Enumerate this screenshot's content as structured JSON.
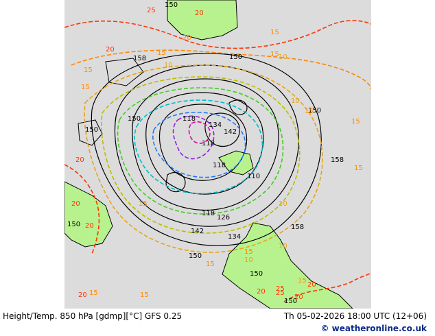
{
  "map": {
    "colors": {
      "sea": "#dcdcdc",
      "land": "#b8f28e",
      "height_contour": "#000000",
      "t20": "#ff3300",
      "t15": "#ff8800",
      "t10": "#e8a317",
      "t5": "#bbbb00",
      "t0": "#44cc22",
      "tm5": "#00bbcc",
      "tm10": "#1e78ff",
      "tm15": "#8822dd",
      "tm25": "#dd00aa"
    },
    "labels": [
      {
        "text": "25",
        "color": "#ff3300"
      },
      {
        "text": "20",
        "color": "#ff3300"
      },
      {
        "text": "150",
        "color": "#000000"
      },
      {
        "text": "20",
        "color": "#ff8800"
      },
      {
        "text": "15",
        "color": "#ff8800"
      },
      {
        "text": "15",
        "color": "#ff8800"
      },
      {
        "text": "20",
        "color": "#ff3300"
      },
      {
        "text": "158",
        "color": "#000000"
      },
      {
        "text": "15",
        "color": "#ff8800"
      },
      {
        "text": "150",
        "color": "#000000"
      },
      {
        "text": "15",
        "color": "#ff8800"
      },
      {
        "text": "10",
        "color": "#e8a317"
      },
      {
        "text": "10",
        "color": "#e8a317"
      },
      {
        "text": "15",
        "color": "#ff8800"
      },
      {
        "text": "15",
        "color": "#ff8800"
      },
      {
        "text": "150",
        "color": "#000000"
      },
      {
        "text": "150",
        "color": "#000000"
      },
      {
        "text": "150",
        "color": "#000000"
      },
      {
        "text": "10",
        "color": "#e8a317"
      },
      {
        "text": "15",
        "color": "#ff8800"
      },
      {
        "text": "118",
        "color": "#000000"
      },
      {
        "text": "134",
        "color": "#000000"
      },
      {
        "text": "142",
        "color": "#000000"
      },
      {
        "text": "118",
        "color": "#000000"
      },
      {
        "text": "118",
        "color": "#000000"
      },
      {
        "text": "110",
        "color": "#000000"
      },
      {
        "text": "158",
        "color": "#000000"
      },
      {
        "text": "15",
        "color": "#ff8800"
      },
      {
        "text": "20",
        "color": "#ff3300"
      },
      {
        "text": "10",
        "color": "#e8a317"
      },
      {
        "text": "15",
        "color": "#ff8800"
      },
      {
        "text": "20",
        "color": "#ff3300"
      },
      {
        "text": "150",
        "color": "#000000"
      },
      {
        "text": "20",
        "color": "#ff3300"
      },
      {
        "text": "118",
        "color": "#000000"
      },
      {
        "text": "126",
        "color": "#000000"
      },
      {
        "text": "142",
        "color": "#000000"
      },
      {
        "text": "134",
        "color": "#000000"
      },
      {
        "text": "158",
        "color": "#000000"
      },
      {
        "text": "10",
        "color": "#e8a317"
      },
      {
        "text": "15",
        "color": "#ff8800"
      },
      {
        "text": "150",
        "color": "#000000"
      },
      {
        "text": "15",
        "color": "#ff8800"
      },
      {
        "text": "10",
        "color": "#e8a317"
      },
      {
        "text": "20",
        "color": "#ff3300"
      },
      {
        "text": "150",
        "color": "#000000"
      },
      {
        "text": "15",
        "color": "#ff8800"
      },
      {
        "text": "20",
        "color": "#ff3300"
      },
      {
        "text": "25",
        "color": "#ff3300"
      },
      {
        "text": "20",
        "color": "#ff3300"
      },
      {
        "text": "150",
        "color": "#000000"
      },
      {
        "text": "25",
        "color": "#ff3300"
      },
      {
        "text": "20",
        "color": "#ff3300"
      },
      {
        "text": "15",
        "color": "#ff8800"
      },
      {
        "text": "15",
        "color": "#ff8800"
      }
    ]
  },
  "footer": {
    "title": "Height/Temp. 850 hPa [gdmp][°C] GFS 0.25",
    "time": "Th 05-02-2026 18:00 UTC (12+06)",
    "credit": "© weatheronline.co.uk"
  }
}
